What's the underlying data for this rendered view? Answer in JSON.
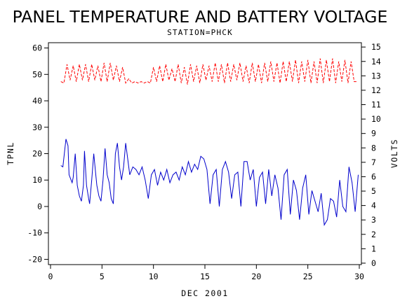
{
  "chart_data": {
    "type": "line",
    "title": "PANEL TEMPERATURE AND BATTERY VOLTAGE",
    "subtitle": "STATION=PHCK",
    "xlabel": "DEC 2001",
    "ylabel_left": "TPNL",
    "ylabel_right": "VOLTS",
    "xlim": [
      0,
      30
    ],
    "ylim_left": [
      -22,
      62
    ],
    "ylim_right": [
      -0.1,
      15.3
    ],
    "x_ticks": [
      0,
      5,
      10,
      15,
      20,
      25,
      30
    ],
    "y_left_ticks": [
      -20,
      -10,
      0,
      10,
      20,
      30,
      40,
      50,
      60
    ],
    "y_right_ticks": [
      0,
      1,
      2,
      3,
      4,
      5,
      6,
      7,
      8,
      9,
      10,
      11,
      12,
      13,
      14,
      15
    ],
    "grid": false,
    "series": [
      {
        "axis": "left",
        "color": "#0000cc",
        "x": [
          1.0,
          1.2,
          1.4,
          1.5,
          1.7,
          1.8,
          2.0,
          2.1,
          2.2,
          2.4,
          2.6,
          2.8,
          3.0,
          3.2,
          3.3,
          3.5,
          3.7,
          3.8,
          4.0,
          4.2,
          4.4,
          4.5,
          4.7,
          4.9,
          5.1,
          5.3,
          5.5,
          5.7,
          5.9,
          6.1,
          6.3,
          6.5,
          6.7,
          6.9,
          7.1,
          7.3,
          7.5,
          7.7,
          8.0,
          8.3,
          8.6,
          8.9,
          9.2,
          9.5,
          9.8,
          10.1,
          10.4,
          10.7,
          11.0,
          11.3,
          11.6,
          11.9,
          12.2,
          12.5,
          12.8,
          13.1,
          13.4,
          13.7,
          14.0,
          14.3,
          14.6,
          14.9,
          15.2,
          15.5,
          15.8,
          16.1,
          16.4,
          16.7,
          17.0,
          17.3,
          17.6,
          17.9,
          18.2,
          18.5,
          18.8,
          19.1,
          19.4,
          19.7,
          20.0,
          20.3,
          20.6,
          20.9,
          21.2,
          21.5,
          21.8,
          22.1,
          22.4,
          22.7,
          23.0,
          23.3,
          23.6,
          23.9,
          24.2,
          24.5,
          24.8,
          25.1,
          25.4,
          25.7,
          26.0,
          26.3,
          26.6,
          26.9,
          27.2,
          27.5,
          27.8,
          28.1,
          28.4,
          28.7,
          29.0,
          29.3,
          29.6,
          29.9
        ],
        "values": [
          15.5,
          15.0,
          22.0,
          25.5,
          23.0,
          12.0,
          10.0,
          9.0,
          11.0,
          20.0,
          8.0,
          4.0,
          2.0,
          8.0,
          21.0,
          8.0,
          3.0,
          1.0,
          10.0,
          20.0,
          12.0,
          8.0,
          4.0,
          2.0,
          10.0,
          22.0,
          12.0,
          9.0,
          3.0,
          1.0,
          20.0,
          24.0,
          15.0,
          10.0,
          15.0,
          24.0,
          18.0,
          12.0,
          15.0,
          14.0,
          12.0,
          15.0,
          10.0,
          3.0,
          12.0,
          14.0,
          8.0,
          13.0,
          10.0,
          14.0,
          9.0,
          12.0,
          13.0,
          10.0,
          15.0,
          12.0,
          17.0,
          13.0,
          16.0,
          14.0,
          19.0,
          18.0,
          14.0,
          1.0,
          12.0,
          14.0,
          0.0,
          14.0,
          17.0,
          13.0,
          3.0,
          12.0,
          13.0,
          0.0,
          17.0,
          17.0,
          10.0,
          14.0,
          0.0,
          11.0,
          13.0,
          1.0,
          14.0,
          4.0,
          12.0,
          7.0,
          -5.0,
          12.0,
          14.0,
          -3.0,
          10.0,
          6.0,
          -5.0,
          7.0,
          12.0,
          -3.0,
          6.0,
          2.0,
          -2.0,
          5.0,
          -7.0,
          -5.0,
          3.0,
          2.0,
          -4.0,
          10.0,
          0.0,
          -2.0,
          15.0,
          9.0,
          -2.0,
          12.0
        ]
      },
      {
        "axis": "right",
        "color": "#ff0000",
        "x": [
          1.0,
          1.3,
          1.6,
          1.9,
          2.2,
          2.5,
          2.8,
          3.1,
          3.4,
          3.7,
          4.0,
          4.3,
          4.6,
          4.9,
          5.2,
          5.5,
          5.8,
          6.1,
          6.4,
          6.7,
          7.0,
          7.3,
          7.6,
          7.9,
          8.2,
          8.5,
          8.8,
          9.1,
          9.4,
          9.7,
          10.0,
          10.3,
          10.6,
          10.9,
          11.2,
          11.5,
          11.8,
          12.1,
          12.4,
          12.7,
          13.0,
          13.3,
          13.6,
          13.9,
          14.2,
          14.5,
          14.8,
          15.1,
          15.4,
          15.7,
          16.0,
          16.3,
          16.6,
          16.9,
          17.2,
          17.5,
          17.8,
          18.1,
          18.4,
          18.7,
          19.0,
          19.3,
          19.6,
          19.9,
          20.2,
          20.5,
          20.8,
          21.1,
          21.4,
          21.7,
          22.0,
          22.3,
          22.6,
          22.9,
          23.2,
          23.5,
          23.8,
          24.1,
          24.4,
          24.7,
          25.0,
          25.3,
          25.6,
          25.9,
          26.2,
          26.5,
          26.8,
          27.1,
          27.4,
          27.7,
          28.0,
          28.3,
          28.6,
          28.9,
          29.2,
          29.5,
          29.8
        ],
        "values": [
          12.6,
          12.5,
          13.8,
          12.7,
          13.7,
          12.6,
          13.8,
          12.7,
          13.8,
          12.6,
          13.8,
          12.7,
          13.7,
          12.6,
          13.9,
          12.6,
          13.9,
          12.7,
          13.7,
          12.6,
          13.6,
          12.5,
          12.8,
          12.5,
          12.6,
          12.5,
          12.6,
          12.5,
          12.6,
          12.5,
          13.6,
          12.6,
          13.7,
          12.6,
          13.8,
          12.7,
          13.5,
          12.6,
          13.8,
          12.5,
          13.6,
          12.4,
          13.8,
          12.6,
          13.7,
          12.5,
          13.8,
          12.7,
          13.7,
          12.6,
          13.9,
          12.6,
          13.8,
          12.5,
          13.9,
          12.6,
          13.8,
          12.7,
          13.9,
          12.6,
          13.7,
          12.5,
          13.9,
          12.6,
          13.8,
          12.5,
          13.9,
          12.6,
          14.0,
          12.6,
          13.9,
          12.5,
          14.0,
          12.6,
          14.0,
          12.6,
          14.1,
          12.5,
          14.0,
          12.6,
          14.1,
          12.5,
          14.0,
          12.5,
          14.2,
          12.5,
          14.1,
          12.6,
          14.2,
          12.5,
          14.0,
          12.6,
          14.1,
          12.5,
          14.0,
          12.6,
          12.6
        ]
      }
    ]
  }
}
